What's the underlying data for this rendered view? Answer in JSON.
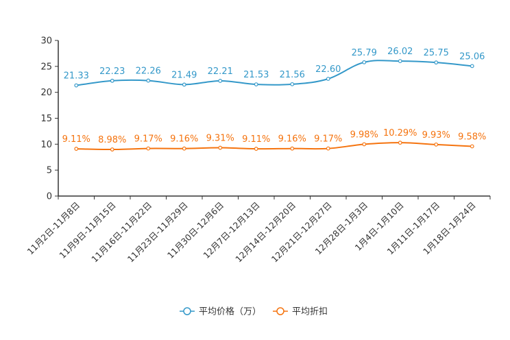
{
  "chart_data": {
    "type": "line",
    "categories": [
      "11月2日-11月8日",
      "11月9日-11月15日",
      "11月16日-11月22日",
      "11月23日-11月29日",
      "11月30日-12月6日",
      "12月7日-12月13日",
      "12月14日-12月20日",
      "12月21日-12月27日",
      "12月28日-1月3日",
      "1月4日-1月10日",
      "1月11日-1月17日",
      "1月18日-1月24日"
    ],
    "ylim": [
      0,
      30
    ],
    "yticks": [
      0,
      5,
      10,
      15,
      20,
      25,
      30
    ],
    "legend_position": "bottom-center",
    "series": [
      {
        "name": "平均价格（万）",
        "color": "#3398c9",
        "values": [
          21.33,
          22.23,
          22.26,
          21.49,
          22.21,
          21.53,
          21.56,
          22.6,
          25.79,
          26.02,
          25.75,
          25.06
        ],
        "labels": [
          "21.33",
          "22.23",
          "22.26",
          "21.49",
          "22.21",
          "21.53",
          "21.56",
          "22.60",
          "25.79",
          "26.02",
          "25.75",
          "25.06"
        ]
      },
      {
        "name": "平均折扣",
        "color": "#f5730e",
        "values": [
          9.11,
          8.98,
          9.17,
          9.16,
          9.31,
          9.11,
          9.16,
          9.17,
          9.98,
          10.29,
          9.93,
          9.58
        ],
        "labels": [
          "9.11%",
          "8.98%",
          "9.17%",
          "9.16%",
          "9.31%",
          "9.11%",
          "9.16%",
          "9.17%",
          "9.98%",
          "10.29%",
          "9.93%",
          "9.58%"
        ]
      }
    ]
  }
}
